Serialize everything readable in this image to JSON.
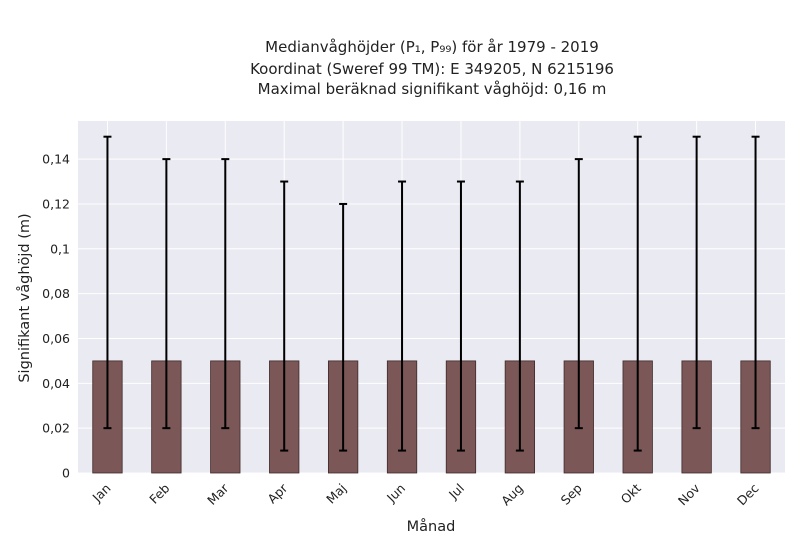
{
  "chart_data": {
    "type": "bar",
    "title_lines": [
      "Medianvåghöjder (P₁, P₉₉) för år 1979 - 2019",
      "Koordinat (Sweref 99 TM): E 349205, N 6215196",
      "Maximal beräknad signifikant våghöjd: 0,16 m"
    ],
    "xlabel": "Månad",
    "ylabel": "Signifikant våghöjd (m)",
    "categories": [
      "Jan",
      "Feb",
      "Mar",
      "Apr",
      "Maj",
      "Jun",
      "Jul",
      "Aug",
      "Sep",
      "Okt",
      "Nov",
      "Dec"
    ],
    "values": [
      0.05,
      0.05,
      0.05,
      0.05,
      0.05,
      0.05,
      0.05,
      0.05,
      0.05,
      0.05,
      0.05,
      0.05
    ],
    "error_low": [
      0.02,
      0.02,
      0.02,
      0.01,
      0.01,
      0.01,
      0.01,
      0.01,
      0.02,
      0.01,
      0.02,
      0.02
    ],
    "error_high": [
      0.15,
      0.14,
      0.14,
      0.13,
      0.12,
      0.13,
      0.13,
      0.13,
      0.14,
      0.15,
      0.15,
      0.15
    ],
    "ylim": [
      0,
      0.157
    ],
    "yticks": [
      0,
      0.02,
      0.04,
      0.06,
      0.08,
      0.1,
      0.12,
      0.14
    ],
    "ytick_labels": [
      "0",
      "0,02",
      "0,04",
      "0,06",
      "0,08",
      "0,1",
      "0,12",
      "0,14"
    ],
    "grid": true,
    "colors": {
      "bar": "#7b5757",
      "bar_edge": "#3e2a2a",
      "background": "#eaeaf2",
      "grid": "#ffffff",
      "error": "#000000"
    }
  }
}
